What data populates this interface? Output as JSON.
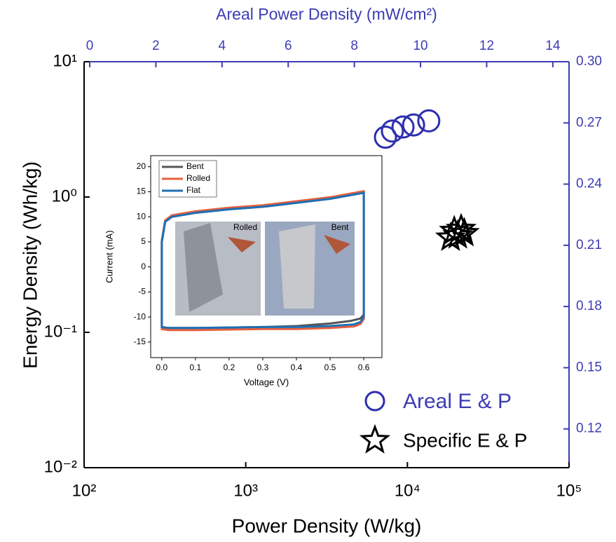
{
  "chart_data": [
    {
      "type": "scatter",
      "xlabel": "Power Density (W/kg)",
      "ylabel": "Energy Density (Wh/kg)",
      "x2label": "Areal Power Density (mW/cm²)",
      "xscale": "log",
      "yscale": "log",
      "xlim": [
        100,
        100000
      ],
      "ylim": [
        0.01,
        10
      ],
      "xticks": [
        {
          "value": 100,
          "label": "10²"
        },
        {
          "value": 1000,
          "label": "10³"
        },
        {
          "value": 10000,
          "label": "10⁴"
        },
        {
          "value": 100000,
          "label": "10⁵"
        }
      ],
      "yticks": [
        {
          "value": 0.01,
          "label": "10⁻²"
        },
        {
          "value": 0.1,
          "label": "10⁻¹"
        },
        {
          "value": 1,
          "label": "10⁰"
        },
        {
          "value": 10,
          "label": "10¹"
        }
      ],
      "x2lim": [
        -0.17,
        14.49
      ],
      "x2ticks": [
        0,
        2,
        4,
        6,
        8,
        10,
        12,
        14
      ],
      "y2lim": [
        0.101,
        0.3
      ],
      "y2ticks": [
        0.12,
        0.15,
        0.18,
        0.21,
        0.24,
        {
          "value": 0.27,
          "label": "0.27"
        },
        {
          "value": 0.3,
          "label": "0.30"
        }
      ],
      "secondary_color": "#3c3cb4",
      "legend": "lower right",
      "series": [
        {
          "name": "Areal E & P",
          "color": "#2e2eb0",
          "marker": "circle",
          "axis": "y2",
          "x": [
            8.94,
            9.15,
            9.47,
            9.79,
            10.25
          ],
          "values": [
            0.263,
            0.266,
            0.268,
            0.269,
            0.271
          ]
        },
        {
          "name": "Specific E & P",
          "color": "#000000",
          "marker": "star",
          "x": [
            18500,
            19500,
            20500,
            21500,
            22500
          ],
          "values": [
            0.5,
            0.56,
            0.52,
            0.58,
            0.54
          ]
        }
      ]
    },
    {
      "type": "line",
      "xlabel": "Voltage (V)",
      "ylabel": "Current (mA)",
      "xlim": [
        -0.033,
        0.654
      ],
      "ylim": [
        -18.1,
        22.2
      ],
      "xticks": [
        {
          "value": 0,
          "label": "0.0"
        },
        0.1,
        0.2,
        0.3,
        0.4,
        0.5,
        0.6
      ],
      "yticks": [
        -15,
        -10,
        -5,
        0,
        5,
        10,
        15,
        20
      ],
      "legend": "upper left",
      "annotations": [
        "Rolled",
        "Bent"
      ],
      "series": [
        {
          "name": "Bent",
          "color": "#555555",
          "x": [
            0.0,
            0.0,
            0.01,
            0.03,
            0.1,
            0.2,
            0.3,
            0.4,
            0.5,
            0.6,
            0.6,
            0.59,
            0.56,
            0.5,
            0.4,
            0.3,
            0.2,
            0.1,
            0.02,
            0.0
          ],
          "values": [
            -12,
            5,
            9,
            10,
            10.8,
            11.5,
            12,
            12.8,
            13.6,
            14.8,
            -9.5,
            -10.3,
            -10.8,
            -11.3,
            -11.8,
            -12,
            -12.1,
            -12.2,
            -12.2,
            -12
          ]
        },
        {
          "name": "Rolled",
          "color": "#e8603c",
          "x": [
            0.0,
            0.0,
            0.01,
            0.03,
            0.1,
            0.2,
            0.3,
            0.4,
            0.5,
            0.6,
            0.6,
            0.59,
            0.57,
            0.5,
            0.4,
            0.3,
            0.2,
            0.1,
            0.02,
            0.0
          ],
          "values": [
            -12.4,
            5.3,
            9.3,
            10.3,
            11.1,
            11.8,
            12.3,
            13.1,
            13.9,
            15.1,
            -10.4,
            -11.4,
            -11.9,
            -12.2,
            -12.4,
            -12.4,
            -12.5,
            -12.6,
            -12.6,
            -12.4
          ]
        },
        {
          "name": "Flat",
          "color": "#1f6fb4",
          "x": [
            0.0,
            0.0,
            0.01,
            0.03,
            0.1,
            0.2,
            0.3,
            0.4,
            0.5,
            0.6,
            0.6,
            0.59,
            0.57,
            0.5,
            0.4,
            0.3,
            0.2,
            0.1,
            0.02,
            0.0
          ],
          "values": [
            -12,
            5,
            9,
            10,
            10.8,
            11.5,
            12,
            12.8,
            13.6,
            14.8,
            -10,
            -11,
            -11.5,
            -11.8,
            -12,
            -12,
            -12.1,
            -12.2,
            -12.2,
            -12
          ]
        }
      ]
    }
  ]
}
